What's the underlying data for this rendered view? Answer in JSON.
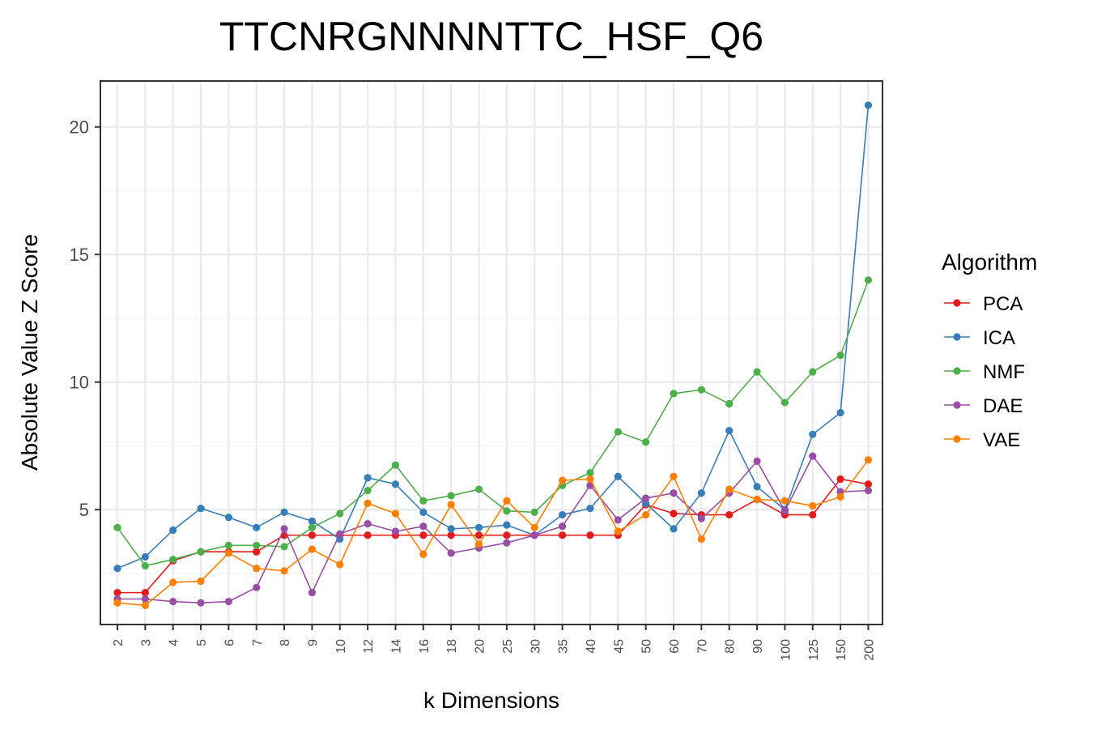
{
  "chart_data": {
    "type": "line",
    "title": "TTCNRGNNNNTTC_HSF_Q6",
    "xlabel": "k Dimensions",
    "ylabel": "Absolute Value Z Score",
    "categories": [
      "2",
      "3",
      "4",
      "5",
      "6",
      "7",
      "8",
      "9",
      "10",
      "12",
      "14",
      "16",
      "18",
      "20",
      "25",
      "30",
      "35",
      "40",
      "45",
      "50",
      "60",
      "70",
      "80",
      "90",
      "100",
      "125",
      "150",
      "200"
    ],
    "y_ticks": [
      5,
      10,
      15,
      20
    ],
    "ylim": [
      0.5,
      21.8
    ],
    "grid": true,
    "legend": {
      "title": "Algorithm",
      "position": "right"
    },
    "series": [
      {
        "name": "PCA",
        "color": "#E41A1C",
        "values": [
          1.75,
          1.75,
          3.0,
          3.35,
          3.35,
          3.35,
          4.0,
          4.0,
          4.0,
          4.0,
          4.0,
          4.0,
          4.0,
          4.0,
          4.0,
          4.0,
          4.0,
          4.0,
          4.0,
          5.2,
          4.85,
          4.8,
          4.8,
          5.4,
          4.8,
          4.8,
          6.2,
          6.0
        ]
      },
      {
        "name": "ICA",
        "color": "#377EB8",
        "values": [
          2.7,
          3.15,
          4.2,
          5.05,
          4.7,
          4.3,
          4.9,
          4.55,
          3.85,
          6.25,
          6.0,
          4.9,
          4.25,
          4.3,
          4.4,
          4.0,
          4.8,
          5.05,
          6.3,
          5.25,
          4.25,
          5.65,
          8.1,
          5.9,
          5.0,
          7.95,
          8.8,
          20.85
        ]
      },
      {
        "name": "NMF",
        "color": "#4DAF4A",
        "values": [
          4.3,
          2.8,
          3.05,
          3.35,
          3.6,
          3.6,
          3.55,
          4.3,
          4.85,
          5.75,
          6.75,
          5.35,
          5.55,
          5.8,
          4.95,
          4.9,
          5.95,
          6.45,
          8.05,
          7.65,
          9.55,
          9.7,
          9.15,
          10.4,
          9.2,
          10.4,
          11.05,
          14.0
        ]
      },
      {
        "name": "DAE",
        "color": "#984EA3",
        "values": [
          1.5,
          1.5,
          1.4,
          1.35,
          1.4,
          1.95,
          4.25,
          1.75,
          4.05,
          4.45,
          4.15,
          4.35,
          3.3,
          3.5,
          3.7,
          4.0,
          4.35,
          5.95,
          4.6,
          5.45,
          5.65,
          4.65,
          5.65,
          6.9,
          4.95,
          7.1,
          5.7,
          5.75
        ]
      },
      {
        "name": "VAE",
        "color": "#FF7F00",
        "values": [
          1.35,
          1.25,
          2.15,
          2.2,
          3.3,
          2.7,
          2.6,
          3.45,
          2.85,
          5.25,
          4.85,
          3.25,
          5.2,
          3.65,
          5.35,
          4.3,
          6.15,
          6.2,
          4.15,
          4.8,
          6.3,
          3.85,
          5.8,
          5.4,
          5.35,
          5.15,
          5.5,
          6.95
        ]
      }
    ]
  }
}
